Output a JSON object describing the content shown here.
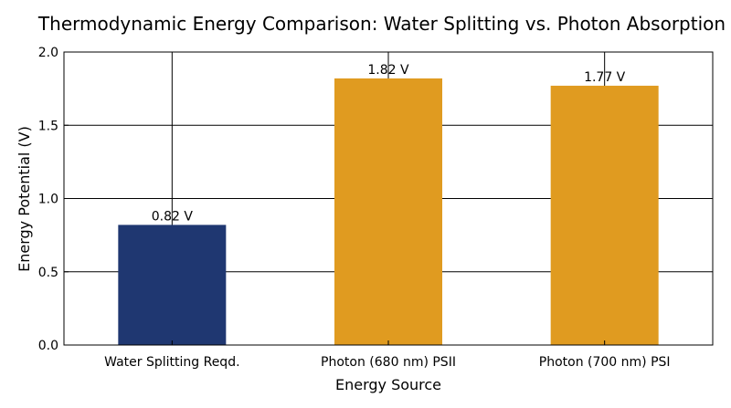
{
  "chart_data": {
    "type": "bar",
    "title": "Thermodynamic Energy Comparison: Water Splitting vs. Photon Absorption",
    "xlabel": "Energy Source",
    "ylabel": "Energy Potential (V)",
    "categories": [
      "Water Splitting Reqd.",
      "Photon (680 nm) PSII",
      "Photon (700 nm) PSI"
    ],
    "values": [
      0.82,
      1.82,
      1.77
    ],
    "data_labels": [
      "0.82 V",
      "1.82 V",
      "1.77 V"
    ],
    "bar_colors": [
      "#1f3771",
      "#e09b20",
      "#e09b20"
    ],
    "ylim": [
      0,
      2.0
    ],
    "yticks": [
      0.0,
      0.5,
      1.0,
      1.5,
      2.0
    ],
    "ytick_labels": [
      "0.0",
      "0.5",
      "1.0",
      "1.5",
      "2.0"
    ],
    "grid": true,
    "legend": false
  }
}
